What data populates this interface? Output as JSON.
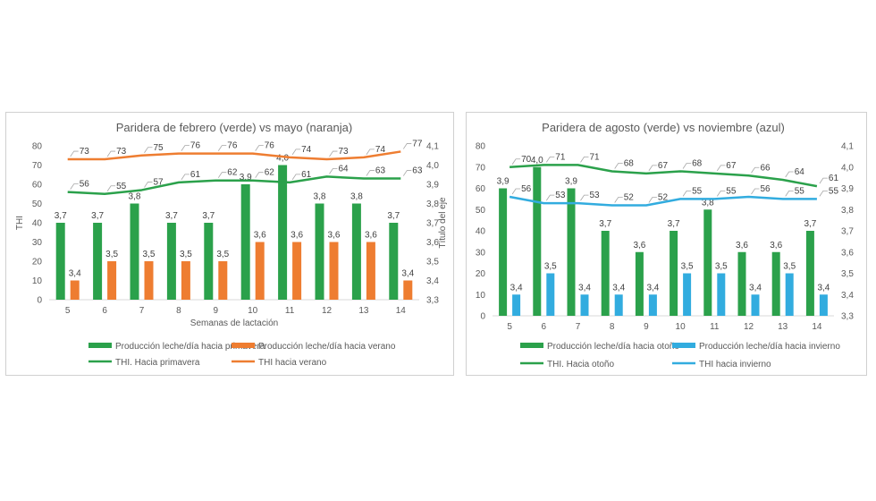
{
  "chart_data": [
    {
      "type": "bar",
      "title": "Paridera de febrero (verde) vs mayo (naranja)",
      "xlabel": "Semanas de lactación",
      "ylabel": "THI",
      "y2label": "Título del eje",
      "categories": [
        "5",
        "6",
        "7",
        "8",
        "9",
        "10",
        "11",
        "12",
        "13",
        "14"
      ],
      "ylim": [
        0,
        80
      ],
      "yticks": [
        0,
        10,
        20,
        30,
        40,
        50,
        60,
        70,
        80
      ],
      "y2lim": [
        3.3,
        4.1
      ],
      "y2ticks": [
        "3,3",
        "3,4",
        "3,5",
        "3,6",
        "3,7",
        "3,8",
        "3,9",
        "4,0",
        "4,1"
      ],
      "grid": false,
      "legend_position": "bottom",
      "bar_series": [
        {
          "name": "Producción leche/día hacia primavera",
          "color": "#2ba14b",
          "values": [
            3.7,
            3.7,
            3.8,
            3.7,
            3.7,
            3.9,
            4.0,
            3.8,
            3.8,
            3.7
          ],
          "labels": [
            "3,7",
            "3,7",
            "3,8",
            "3,7",
            "3,7",
            "3,9",
            "4,0",
            "3,8",
            "3,8",
            "3,7"
          ]
        },
        {
          "name": "Producción leche/día hacia verano",
          "color": "#ee7d31",
          "values": [
            3.4,
            3.5,
            3.5,
            3.5,
            3.5,
            3.6,
            3.6,
            3.6,
            3.6,
            3.4
          ],
          "labels": [
            "3,4",
            "3,5",
            "3,5",
            "3,5",
            "3,5",
            "3,6",
            "3,6",
            "3,6",
            "3,6",
            "3,4"
          ]
        }
      ],
      "line_series": [
        {
          "name": "THI. Hacia primavera",
          "color": "#2ba14b",
          "values": [
            56,
            55,
            57,
            61,
            62,
            62,
            61,
            64,
            63,
            63
          ]
        },
        {
          "name": "THI hacia verano",
          "color": "#ee7d31",
          "values": [
            73,
            73,
            75,
            76,
            76,
            76,
            74,
            73,
            74,
            77
          ]
        }
      ]
    },
    {
      "type": "bar",
      "title": "Paridera de agosto (verde) vs noviembre (azul)",
      "xlabel": "",
      "ylabel": "",
      "y2label": "",
      "categories": [
        "5",
        "6",
        "7",
        "8",
        "9",
        "10",
        "11",
        "12",
        "13",
        "14"
      ],
      "ylim": [
        0,
        80
      ],
      "yticks": [
        0,
        10,
        20,
        30,
        40,
        50,
        60,
        70,
        80
      ],
      "y2lim": [
        3.3,
        4.1
      ],
      "y2ticks": [
        "3,3",
        "3,4",
        "3,5",
        "3,6",
        "3,7",
        "3,8",
        "3,9",
        "4,0",
        "4,1"
      ],
      "grid": false,
      "legend_position": "bottom",
      "bar_series": [
        {
          "name": "Producción leche/día hacia otoño",
          "color": "#2ba14b",
          "values": [
            3.9,
            4.0,
            3.9,
            3.7,
            3.6,
            3.7,
            3.8,
            3.6,
            3.6,
            3.7
          ],
          "labels": [
            "3,9",
            "4,0",
            "3,9",
            "3,7",
            "3,6",
            "3,7",
            "3,8",
            "3,6",
            "3,6",
            "3,7"
          ]
        },
        {
          "name": "Producción leche/día hacia invierno",
          "color": "#32acdf",
          "values": [
            3.4,
            3.5,
            3.4,
            3.4,
            3.4,
            3.5,
            3.5,
            3.4,
            3.5,
            3.4
          ],
          "labels": [
            "3,4",
            "3,5",
            "3,4",
            "3,4",
            "3,4",
            "3,5",
            "3,5",
            "3,4",
            "3,5",
            "3,4"
          ]
        }
      ],
      "line_series": [
        {
          "name": "THI. Hacia otoño",
          "color": "#2ba14b",
          "values": [
            70,
            71,
            71,
            68,
            67,
            68,
            67,
            66,
            64,
            61
          ]
        },
        {
          "name": "THI hacia invierno",
          "color": "#32acdf",
          "values": [
            56,
            53,
            53,
            52,
            52,
            55,
            55,
            56,
            55,
            55
          ]
        }
      ]
    }
  ]
}
